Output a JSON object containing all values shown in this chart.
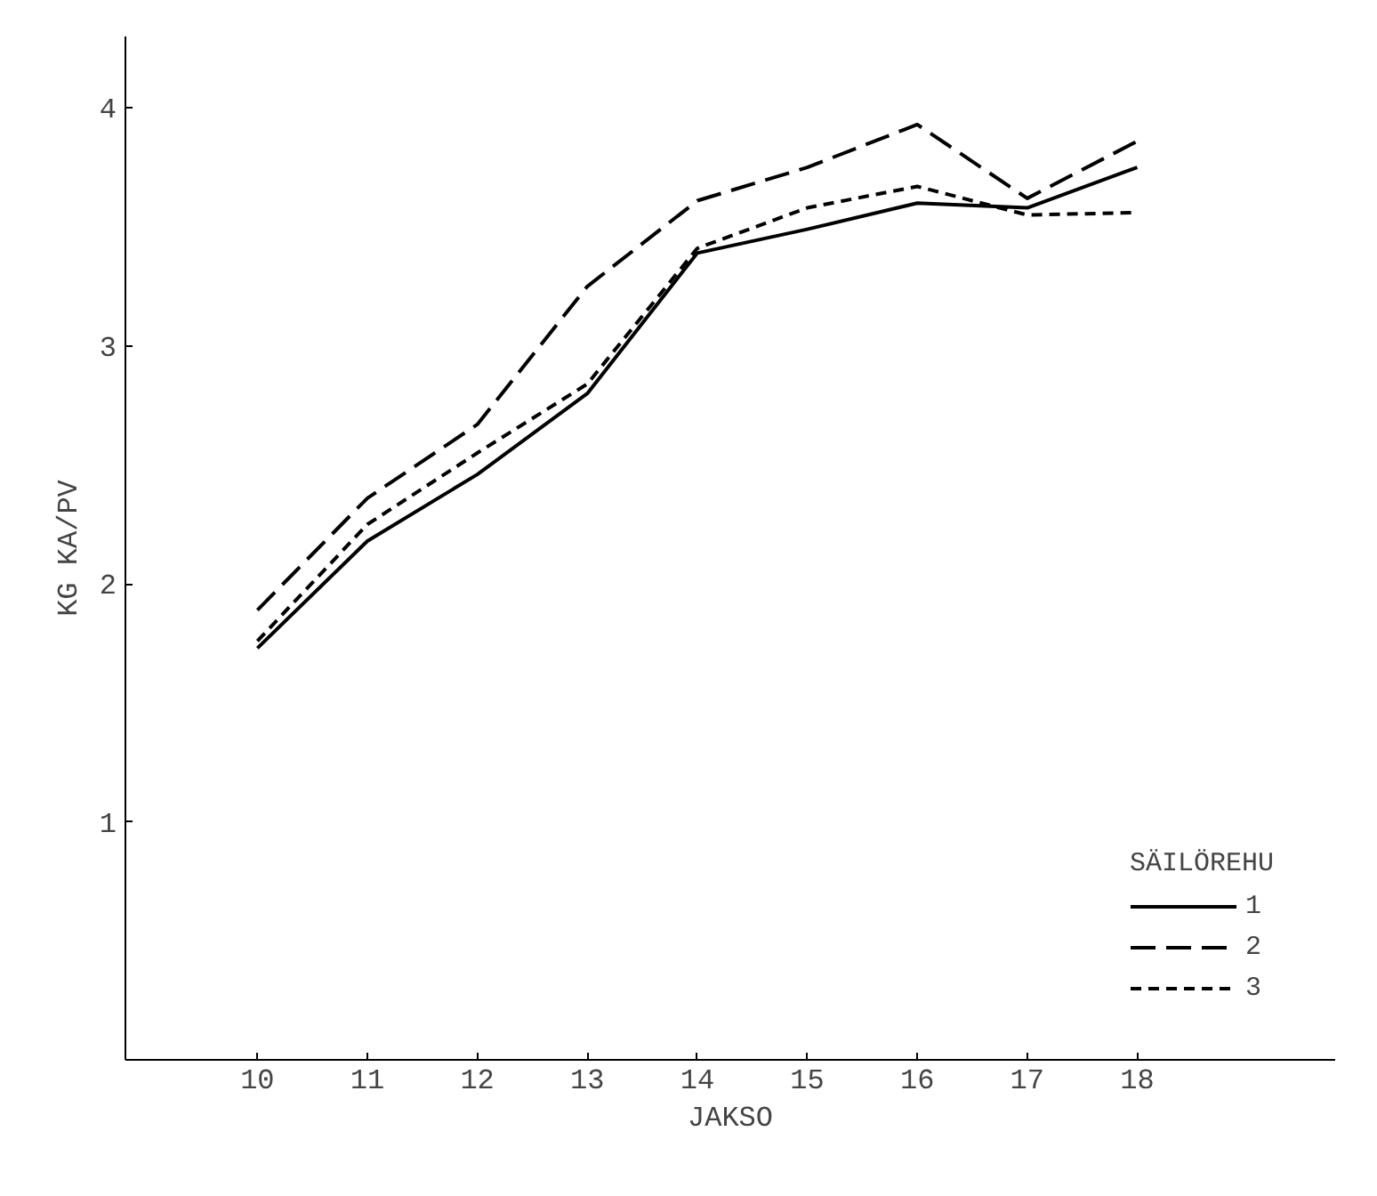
{
  "chart_data": {
    "type": "line",
    "xlabel": "JAKSO",
    "ylabel": "KG KA/PV",
    "legend_title": "SÄILÖREHU",
    "x": [
      10,
      11,
      12,
      13,
      14,
      15,
      16,
      17,
      18
    ],
    "series": [
      {
        "name": "1",
        "color": "#000000",
        "line_style": "solid",
        "values": [
          1.73,
          2.18,
          2.46,
          2.8,
          3.39,
          3.49,
          3.6,
          3.58,
          3.75
        ]
      },
      {
        "name": "2",
        "color": "#000000",
        "line_style": "longdash",
        "values": [
          1.89,
          2.36,
          2.67,
          3.25,
          3.61,
          3.75,
          3.93,
          3.62,
          3.86
        ]
      },
      {
        "name": "3",
        "color": "#000000",
        "line_style": "dashed",
        "values": [
          1.76,
          2.25,
          2.55,
          2.84,
          3.41,
          3.58,
          3.67,
          3.55,
          3.56
        ]
      }
    ],
    "xlim": [
      8.8,
      19.8
    ],
    "ylim": [
      0,
      4.3
    ],
    "xticks": [
      10,
      11,
      12,
      13,
      14,
      15,
      16,
      17,
      18
    ],
    "yticks": [
      1,
      2,
      3,
      4
    ],
    "grid": false,
    "legend": "right",
    "marker": "none"
  }
}
